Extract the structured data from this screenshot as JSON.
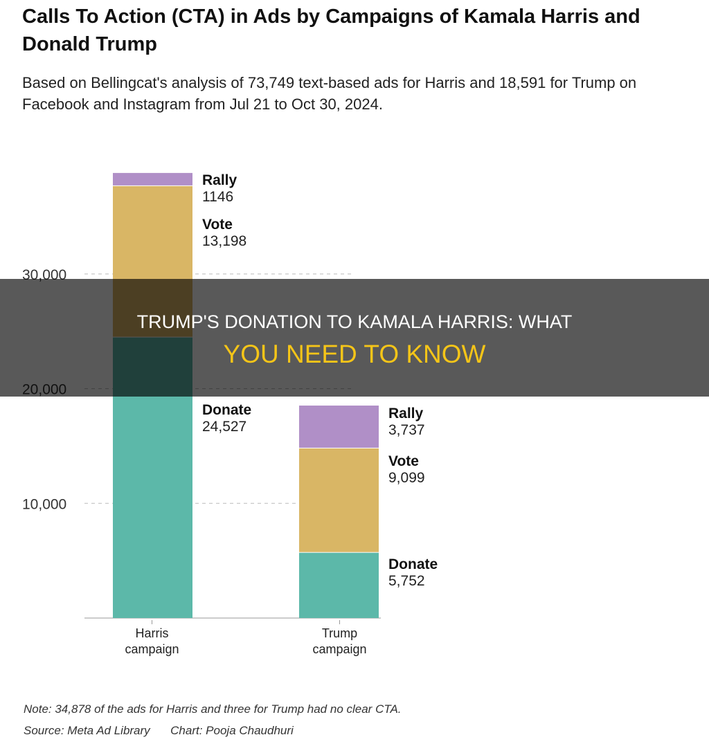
{
  "chart_data": {
    "type": "bar",
    "stacked": true,
    "title": "Calls To Action (CTA) in Ads by Campaigns of Kamala Harris and Donald Trump",
    "subtitle": "Based on Bellingcat's analysis of 73,749 text-based ads for Harris and 18,591 for Trump on Facebook and Instagram from Jul 21 to Oct 30, 2024.",
    "categories": [
      "Harris campaign",
      "Trump campaign"
    ],
    "series": [
      {
        "name": "Donate",
        "values": [
          24527,
          5752
        ],
        "labels": [
          "24,527",
          "5,752"
        ],
        "color": "#5cb8a9"
      },
      {
        "name": "Vote",
        "values": [
          13198,
          9099
        ],
        "labels": [
          "13,198",
          "9,099"
        ],
        "color": "#d9b665"
      },
      {
        "name": "Rally",
        "values": [
          1146,
          3737
        ],
        "labels": [
          "1146",
          "3,737"
        ],
        "color": "#b08fc7"
      }
    ],
    "yticks": [
      10000,
      20000,
      30000
    ],
    "ytick_labels": [
      "10,000",
      "20,000",
      "30,000"
    ],
    "ylim": [
      0,
      40000
    ],
    "grid": true,
    "legend": "inline-labels",
    "note": "Note: 34,878 of the ads for Harris and three for Trump had no clear CTA.",
    "source": "Source: Meta Ad Library",
    "credit": "Chart: Pooja Chaudhuri"
  },
  "overlay": {
    "line1": "TRUMP'S DONATION TO KAMALA HARRIS: WHAT",
    "line2": "YOU NEED TO KNOW",
    "line1_color": "#ffffff",
    "line2_color": "#f5c518"
  }
}
